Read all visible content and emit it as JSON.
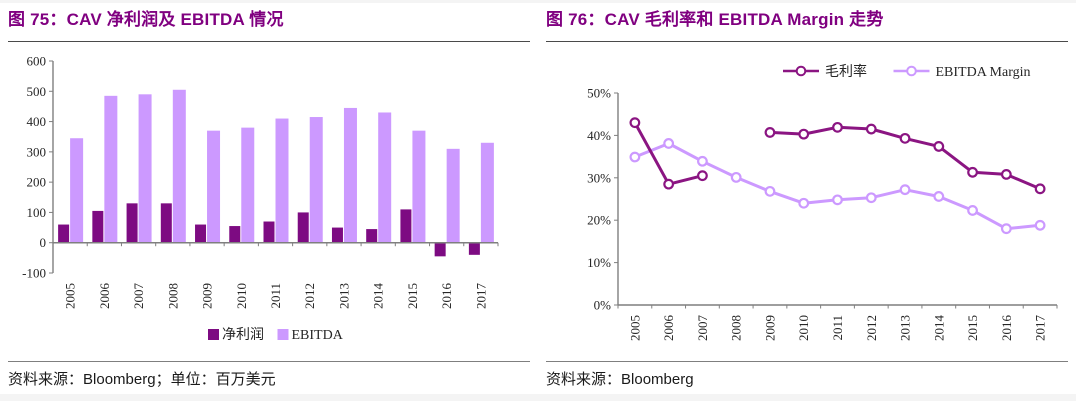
{
  "page": {
    "background": "#ffffff",
    "edge_strip_color": "#f4f4f4",
    "accent_purple": "#800080"
  },
  "figures": [
    {
      "title": "图 75：CAV 净利润及 EBITDA 情况",
      "source_prefix": "资料来源：",
      "source_latin": "Bloomberg",
      "source_suffix": "；单位：百万美元",
      "chart_data": {
        "type": "bar",
        "categories": [
          "2005",
          "2006",
          "2007",
          "2008",
          "2009",
          "2010",
          "2011",
          "2012",
          "2013",
          "2014",
          "2015",
          "2016",
          "2017"
        ],
        "series": [
          {
            "name": "净利润",
            "color": "#7D0B82",
            "values": [
              60,
              105,
              130,
              130,
              60,
              55,
              70,
              100,
              50,
              45,
              110,
              -45,
              -40
            ]
          },
          {
            "name": "EBITDA",
            "color": "#CC99FF",
            "values": [
              345,
              485,
              490,
              505,
              370,
              380,
              410,
              415,
              445,
              430,
              370,
              310,
              330
            ]
          }
        ],
        "ylim": [
          -100,
          600
        ],
        "ytick_step": 100,
        "ytick_format": "number",
        "xlabel": "",
        "ylabel": "",
        "unit": "百万美元",
        "legend_position": "bottom",
        "grid": false
      }
    },
    {
      "title": "图 76：CAV 毛利率和 EBITDA Margin 走势",
      "source_prefix": "资料来源：",
      "source_latin": "Bloomberg",
      "source_suffix": "",
      "chart_data": {
        "type": "line",
        "categories": [
          "2005",
          "2006",
          "2007",
          "2008",
          "2009",
          "2010",
          "2011",
          "2012",
          "2013",
          "2014",
          "2015",
          "2016",
          "2017"
        ],
        "series": [
          {
            "name": "毛利率",
            "color": "#8B1582",
            "values": [
              43,
              28.5,
              30.5,
              null,
              40.7,
              40.3,
              41.9,
              41.5,
              39.3,
              37.4,
              31.3,
              30.8,
              27.4
            ]
          },
          {
            "name": "EBITDA Margin",
            "color": "#CC99FF",
            "values": [
              34.9,
              38.1,
              33.9,
              30.1,
              26.8,
              24.0,
              24.8,
              25.3,
              27.2,
              25.6,
              22.3,
              18.0,
              18.8
            ]
          }
        ],
        "ylim": [
          0,
          50
        ],
        "ytick_step": 10,
        "ytick_format": "percent",
        "xlabel": "",
        "ylabel": "",
        "legend_position": "top",
        "grid": false
      }
    }
  ]
}
